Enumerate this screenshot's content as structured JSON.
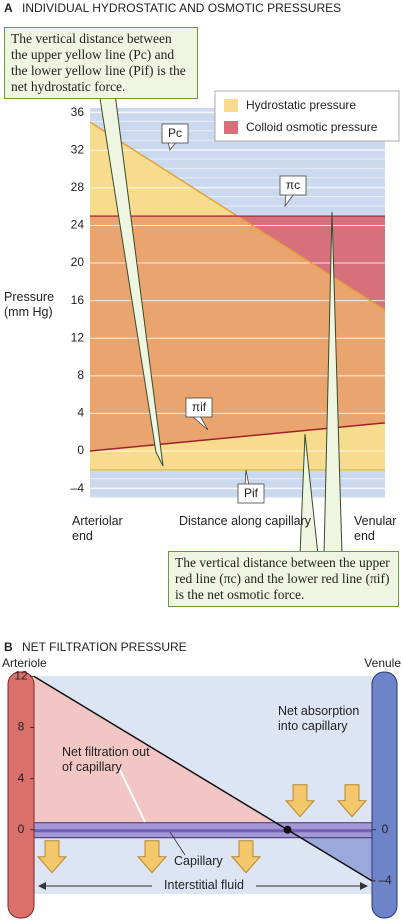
{
  "chart_data": [
    {
      "type": "line",
      "panel": "A",
      "title": "INDIVIDUAL HYDROSTATIC AND OSMOTIC PRESSURES",
      "ylabel": "Pressure (mm Hg)",
      "xlabel": "Distance along capillary",
      "categories": [
        "Arteriolar end",
        "Venular end"
      ],
      "series": [
        {
          "name": "Pc",
          "color": "#e3a23a",
          "values": [
            35,
            15
          ]
        },
        {
          "name": "Pif",
          "color": "#e6c245",
          "values": [
            -2,
            -2
          ]
        },
        {
          "name": "πc",
          "color": "#b5334a",
          "values": [
            25,
            25
          ]
        },
        {
          "name": "πif",
          "color": "#a01f2c",
          "values": [
            0,
            3
          ]
        }
      ],
      "legend": [
        {
          "name": "Hydrostatic pressure",
          "color": "#f7dc8d"
        },
        {
          "name": "Colloid osmotic pressure",
          "color": "#d6707a"
        }
      ],
      "annotations": [
        "The vertical distance between the upper yellow line (Pc) and the lower yellow line (Pif) is the net hydrostatic force.",
        "The vertical distance between the upper red line (πc) and the lower red line (πif) is the net osmotic force."
      ],
      "ylim": [
        -5,
        36.5
      ],
      "yticks": [
        {
          "value": -4,
          "label": "–4"
        },
        0,
        4,
        8,
        12,
        16,
        20,
        24,
        28,
        32,
        36
      ],
      "grid": true
    },
    {
      "type": "line",
      "panel": "B",
      "title": "NET FILTRATION PRESSURE",
      "categories": [
        "Arteriole",
        "Venule"
      ],
      "series": [
        {
          "color": "#111111",
          "values": [
            12,
            -4
          ]
        }
      ],
      "annotations": [
        "Net filtration out of capillary",
        "Net absorption into capillary",
        "Capillary",
        "Interstitial fluid"
      ],
      "ylim": [
        -5.5,
        12.5
      ],
      "yticks": [
        0,
        4,
        8,
        12
      ],
      "y2lim": [
        -5.5,
        12.5
      ],
      "y2ticks": [
        {
          "value": -4,
          "label": "–4"
        },
        0
      ]
    }
  ]
}
